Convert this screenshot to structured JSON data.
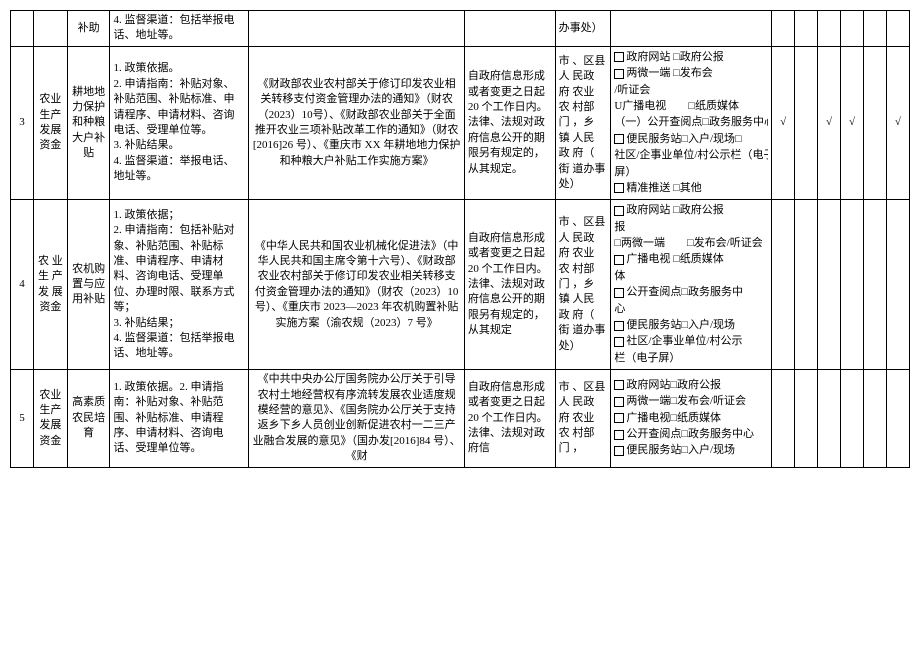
{
  "rows": [
    {
      "num": "",
      "cat": "",
      "sub": "补助",
      "req": "4. 监督渠道：包括举报电话、地址等。",
      "basis": "",
      "time": "",
      "org": "办事处）",
      "chan": []
    },
    {
      "num": "3",
      "cat": "农业生产发展资金",
      "sub": "耕地地力保护和种粮大户补贴",
      "req": "1. 政策依据。\n2. 申请指南：补贴对象、补贴范围、补贴标准、申请程序、申请材料、咨询电话、受理单位等。\n3. 补贴结果。\n4. 监督渠道：举报电话、地址等。",
      "basis": "《财政部农业农村部关于修订印发农业相关转移支付资金管理办法的通知》（财农（2023）10号）、《财政部农业部关于全面推开农业三项补贴改革工作的通知》（财农[2016]26 号）、《重庆市 XX 年耕地地力保护和种粮大户补贴工作实施方案》",
      "time": "自政府信息形成或者变更之日起 20 个工作日内。法律、法规对政府信息公开的期限另有规定的，从其规定。",
      "org": "市 、区县 人 民政 府 农业 农 村部 门 ，乡 镇 人民 政 府（ 街 道办事处）",
      "chan": [
        {
          "b": "□",
          "t": "政府网站 □政府公报"
        },
        {
          "b": "□",
          "t": "两微一端 □发布会"
        },
        {
          "b": "",
          "t": "/听证会"
        },
        {
          "b": "U",
          "t": "广播电视　　□纸质媒体"
        },
        {
          "b": "（一）",
          "t": "公开查阅点□政务服务中心"
        },
        {
          "b": "□",
          "t": "便民服务站□入户/现场□"
        },
        {
          "b": "",
          "t": "社区/企事业单位/村公示栏（电子"
        },
        {
          "b": "",
          "t": "屏）"
        },
        {
          "b": "□",
          "t": "精准推送 □其他"
        }
      ],
      "chk": [
        "√",
        "",
        "√",
        "√",
        "",
        "√"
      ]
    },
    {
      "num": "4",
      "cat": "农 业生 产发 展资金",
      "sub": "农机购置与应用补贴",
      "req": "1. 政策依据；\n2. 申请指南：包括补贴对象、补贴范围、补贴标准、申请程序、申请材料、咨询电话、受理单位、办理时限、联系方式等；\n3. 补贴结果；\n4. 监督渠道：包括举报电话、地址等。",
      "basis": "《中华人民共和国农业机械化促进法》（中华人民共和国主席令第十六号）、《财政部农业农村部关于修订印发农业相关转移支付资金管理办法的通知》（财农（2023）10 号）、《重庆市 2023—2023 年农机购置补贴实施方案（渝农规（2023）7 号》",
      "time": "自政府信息形成或者变更之日起 20 个工作日内。法律、法规对政府信息公开的期限另有规定的，从其规定",
      "org": "市 、区县 人 民政 府 农业 农 村部 门 ，乡 镇 人民 政 府（ 街 道办事处）",
      "chan": [
        {
          "b": "□",
          "t": "政府网站 □政府公报"
        },
        {
          "b": "",
          "t": "报"
        },
        {
          "b": "",
          "t": "□两微一端　　□发布会/听证会"
        },
        {
          "b": "□",
          "t": "广播电视 □纸质媒体"
        },
        {
          "b": "",
          "t": "体"
        },
        {
          "b": "□",
          "t": "公开查阅点□政务服务中"
        },
        {
          "b": "",
          "t": "心"
        },
        {
          "b": "□",
          "t": "便民服务站□入户/现场"
        },
        {
          "b": "□",
          "t": "社区/企事业单位/村公示"
        },
        {
          "b": "",
          "t": "栏（电子屏）"
        }
      ],
      "chk": [
        "",
        "",
        "",
        "",
        "",
        ""
      ]
    },
    {
      "num": "5",
      "cat": "农业生产发展资金",
      "sub": "高素质农民培育",
      "req": "1. 政策依据。2. 申请指南：补贴对象、补贴范围、补贴标准、申请程序、申请材料、咨询电话、受理单位等。",
      "basis": "《中共中央办公厅国务院办公厅关于引导农村土地经营权有序流转发展农业适度规模经营的意见》、《国务院办公厅关于支持返乡下乡人员创业创新促进农村一二三产业融合发展的意见》（国办发[2016]84 号）、《财",
      "time": "自政府信息形成或者变更之日起 20 个工作日内。法律、法规对政府信",
      "org": "市 、区县 人 民政 府 农业 农 村部 门 ，",
      "chan": [
        {
          "b": "□",
          "t": "政府网站□政府公报"
        },
        {
          "b": "□",
          "t": "两微一端□发布会/听证会"
        },
        {
          "b": "□",
          "t": "广播电视□纸质媒体"
        },
        {
          "b": "□",
          "t": "公开查阅点□政务服务中心"
        },
        {
          "b": "□",
          "t": "便民服务站□入户/现场"
        }
      ],
      "chk": [
        "",
        "",
        "",
        "",
        "",
        ""
      ]
    }
  ]
}
